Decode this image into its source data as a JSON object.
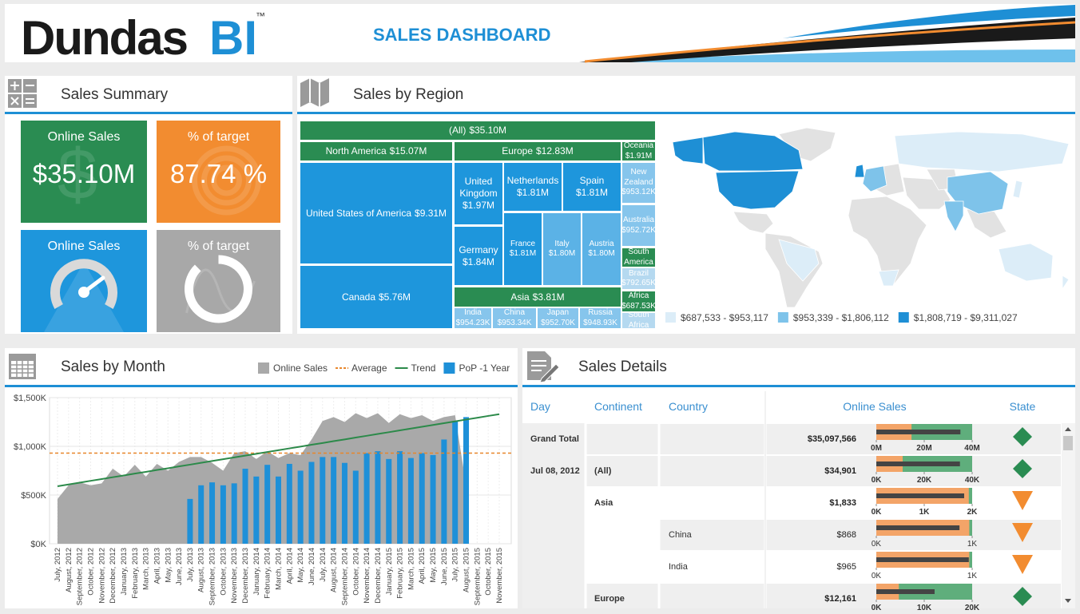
{
  "header": {
    "logo": "Dundas",
    "logo_accent": "BI",
    "trademark": "™",
    "title": "SALES DASHBOARD"
  },
  "sales_summary": {
    "title": "Sales Summary",
    "tiles": [
      {
        "title": "Online Sales",
        "value": 35100000,
        "value_label": "$35.10M",
        "color": "#2a8c52"
      },
      {
        "title": "% of target",
        "value": 87.74,
        "value_label": "87.74 %",
        "color": "#f28c30"
      },
      {
        "title": "Online Sales",
        "visual": "gauge",
        "color": "#1e96dc"
      },
      {
        "title": "% of target",
        "visual": "ring",
        "value": 87.74,
        "color": "#a8a8a8"
      }
    ]
  },
  "sales_by_region": {
    "title": "Sales by Region",
    "treemap": {
      "type": "treemap",
      "nodes": [
        {
          "name": "(All)",
          "value": 35100000,
          "value_label": "$35.10M",
          "color": "#2a8c52"
        },
        {
          "name": "North America",
          "value": 15070000,
          "value_label": "$15.07M",
          "color": "#2a8c52"
        },
        {
          "name": "Europe",
          "value": 12830000,
          "value_label": "$12.83M",
          "color": "#2a8c52"
        },
        {
          "name": "Oceania",
          "value": 1910000,
          "value_label": "$1.91M",
          "color": "#2a8c52"
        },
        {
          "name": "United States of America",
          "value": 9310000,
          "value_label": "$9.31M",
          "color": "#1e96dc"
        },
        {
          "name": "Canada",
          "value": 5760000,
          "value_label": "$5.76M",
          "color": "#1e96dc"
        },
        {
          "name": "United Kingdom",
          "value": 1970000,
          "value_label": "$1.97M",
          "color": "#1e96dc"
        },
        {
          "name": "Netherlands",
          "value": 1810000,
          "value_label": "$1.81M",
          "color": "#1e96dc"
        },
        {
          "name": "Spain",
          "value": 1810000,
          "value_label": "$1.81M",
          "color": "#1e96dc"
        },
        {
          "name": "Germany",
          "value": 1840000,
          "value_label": "$1.84M",
          "color": "#1e96dc"
        },
        {
          "name": "France",
          "value": 1810000,
          "value_label": "$1.81M",
          "color": "#1e96dc"
        },
        {
          "name": "Italy",
          "value": 1800000,
          "value_label": "$1.80M",
          "color": "#5bb2e6"
        },
        {
          "name": "Austria",
          "value": 1800000,
          "value_label": "$1.80M",
          "color": "#5bb2e6"
        },
        {
          "name": "Asia",
          "value": 3810000,
          "value_label": "$3.81M",
          "color": "#2a8c52"
        },
        {
          "name": "India",
          "value": 954230,
          "value_label": "$954.23K",
          "color": "#86c5ec"
        },
        {
          "name": "China",
          "value": 953340,
          "value_label": "$953.34K",
          "color": "#86c5ec"
        },
        {
          "name": "Japan",
          "value": 952700,
          "value_label": "$952.70K",
          "color": "#86c5ec"
        },
        {
          "name": "Russia",
          "value": 948930,
          "value_label": "$948.93K",
          "color": "#86c5ec"
        },
        {
          "name": "New Zealand",
          "value": 953120,
          "value_label": "$953.12K",
          "color": "#86c5ec"
        },
        {
          "name": "Australia",
          "value": 952720,
          "value_label": "$952.72K",
          "color": "#86c5ec"
        },
        {
          "name": "South America",
          "value": 792650,
          "color": "#2a8c52"
        },
        {
          "name": "Brazil",
          "value": 792650,
          "value_label": "$792.65K",
          "color": "#b5d9f0"
        },
        {
          "name": "Africa",
          "value": 687530,
          "value_label": "$687.53K",
          "color": "#2a8c52"
        },
        {
          "name": "South Africa",
          "value": 687530,
          "color": "#b5d9f0"
        }
      ]
    },
    "map_legend": [
      {
        "label": "$687,533 - $953,117",
        "color": "#dcedf8"
      },
      {
        "label": "$953,339 - $1,806,112",
        "color": "#7ec3ea"
      },
      {
        "label": "$1,808,719 - $9,311,027",
        "color": "#1e8fd5"
      }
    ]
  },
  "chart_data": {
    "type": "combo",
    "title": "Sales by Month",
    "categories": [
      "July, 2012",
      "August, 2012",
      "September, 2012",
      "October, 2012",
      "November, 2012",
      "December, 2012",
      "January, 2013",
      "February, 2013",
      "March, 2013",
      "April, 2013",
      "May, 2013",
      "June, 2013",
      "July, 2013",
      "August, 2013",
      "September, 2013",
      "October, 2013",
      "November, 2013",
      "December, 2013",
      "January, 2014",
      "February, 2014",
      "March, 2014",
      "April, 2014",
      "May, 2014",
      "June, 2014",
      "July, 2014",
      "August, 2014",
      "September, 2014",
      "October, 2014",
      "November, 2014",
      "December, 2014",
      "January, 2015",
      "February, 2015",
      "March, 2015",
      "April, 2015",
      "May, 2015",
      "June, 2015",
      "July, 2015",
      "August, 2015",
      "September, 2015",
      "October, 2015",
      "November, 2015"
    ],
    "series": [
      {
        "name": "Online Sales",
        "type": "area",
        "color": "#a9a9a9",
        "values": [
          460,
          600,
          630,
          600,
          620,
          770,
          690,
          810,
          690,
          820,
          750,
          840,
          890,
          890,
          830,
          750,
          930,
          950,
          870,
          950,
          880,
          930,
          910,
          1070,
          1260,
          1300,
          1250,
          1340,
          1290,
          1340,
          1240,
          1330,
          1290,
          1320,
          1260,
          1300,
          1320,
          600,
          null,
          null,
          null
        ]
      },
      {
        "name": "Average",
        "type": "hline",
        "color": "#e8862a",
        "value": 930
      },
      {
        "name": "Trend",
        "type": "line",
        "color": "#2c8a4a",
        "values": [
          590,
          609,
          627,
          646,
          664,
          683,
          701,
          720,
          738,
          757,
          775,
          794,
          812,
          831,
          849,
          868,
          886,
          905,
          923,
          942,
          960,
          979,
          997,
          1016,
          1034,
          1053,
          1071,
          1090,
          1108,
          1127,
          1145,
          1164,
          1182,
          1201,
          1219,
          1238,
          1256,
          1275,
          1293,
          1312,
          1330
        ]
      },
      {
        "name": "PoP -1 Year",
        "type": "bar",
        "color": "#1e90d8",
        "values": [
          null,
          null,
          null,
          null,
          null,
          null,
          null,
          null,
          null,
          null,
          null,
          null,
          460,
          600,
          630,
          600,
          620,
          770,
          690,
          810,
          690,
          820,
          750,
          840,
          890,
          890,
          830,
          750,
          930,
          950,
          870,
          950,
          880,
          930,
          910,
          1070,
          1260,
          1300,
          null,
          null,
          null
        ]
      }
    ],
    "ylim": [
      0,
      1500
    ],
    "yticks": [
      {
        "value": 0,
        "label": "$0K"
      },
      {
        "value": 500,
        "label": "$500K"
      },
      {
        "value": 1000,
        "label": "$1,000K"
      },
      {
        "value": 1500,
        "label": "$1,500K"
      }
    ],
    "grid": true
  },
  "sales_details": {
    "title": "Sales Details",
    "columns": [
      "Day",
      "Continent",
      "Country",
      "Online Sales",
      "State"
    ],
    "bullet": {
      "back_color": "#5fae7c",
      "range_color": "#f3a468",
      "bar_color": "#444444"
    },
    "rows": [
      {
        "label": "Grand Total",
        "level": 0,
        "sales": 35097566,
        "sales_label": "$35,097,566",
        "range": 14700000,
        "ticks": [
          {
            "value": 0,
            "label": "0M"
          },
          {
            "value": 20000000,
            "label": "20M"
          },
          {
            "value": 40000000,
            "label": "40M"
          }
        ],
        "state": "diamond",
        "state_color": "#2a8c52"
      },
      {
        "day": "Jul 08, 2012",
        "label": "(All)",
        "level": 1,
        "sales": 34901,
        "sales_label": "$34,901",
        "range": 11000,
        "ticks": [
          {
            "value": 0,
            "label": "0K"
          },
          {
            "value": 20000,
            "label": "20K"
          },
          {
            "value": 40000,
            "label": "40K"
          }
        ],
        "state": "diamond",
        "state_color": "#2a8c52"
      },
      {
        "label": "Asia",
        "level": 1,
        "sales": 1833,
        "sales_label": "$1,833",
        "range": 1930,
        "ticks": [
          {
            "value": 0,
            "label": "0K"
          },
          {
            "value": 1000,
            "label": "1K"
          },
          {
            "value": 2000,
            "label": "2K"
          }
        ],
        "state": "triangle-down",
        "state_color": "#f28c30"
      },
      {
        "label": "China",
        "level": 2,
        "sales": 868,
        "sales_label": "$868",
        "range": 970,
        "ticks": [
          {
            "value": 0,
            "label": "0K"
          },
          {
            "value": 1000,
            "label": "1K"
          }
        ],
        "state": "triangle-down",
        "state_color": "#f28c30"
      },
      {
        "label": "India",
        "level": 2,
        "sales": 965,
        "sales_label": "$965",
        "range": 970,
        "ticks": [
          {
            "value": 0,
            "label": "0K"
          },
          {
            "value": 1000,
            "label": "1K"
          }
        ],
        "state": "triangle-down",
        "state_color": "#f28c30"
      },
      {
        "label": "Europe",
        "level": 1,
        "sales": 12161,
        "sales_label": "$12,161",
        "range": 4700,
        "ticks": [
          {
            "value": 0,
            "label": "0K"
          },
          {
            "value": 10000,
            "label": "10K"
          },
          {
            "value": 20000,
            "label": "20K"
          }
        ],
        "state": "diamond",
        "state_color": "#2a8c52"
      }
    ]
  }
}
